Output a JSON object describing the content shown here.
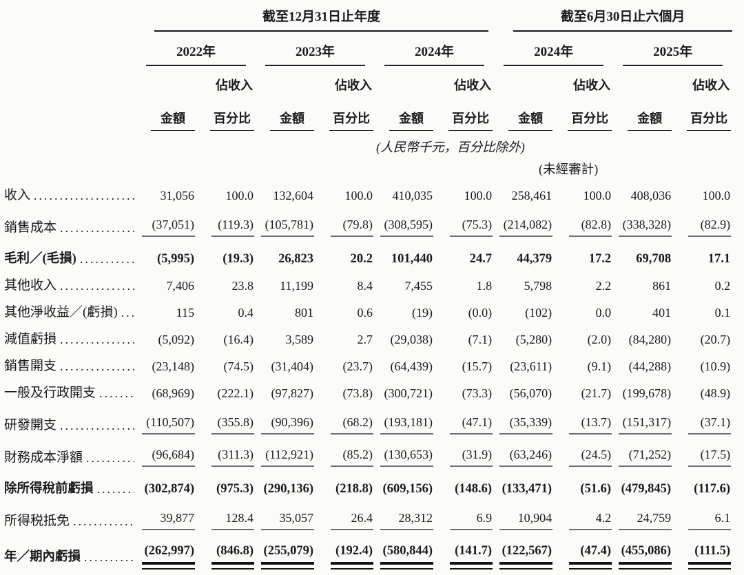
{
  "document": {
    "header": {
      "period_annual": "截至12月31日止年度",
      "period_interim": "截至6月30日止六個月",
      "years_annual": [
        "2022年",
        "2023年",
        "2024年"
      ],
      "years_interim": [
        "2024年",
        "2025年"
      ],
      "col_amount": "金額",
      "col_pct_line1": "佔收入",
      "col_pct_line2": "百分比",
      "note_units": "(人民幣千元，百分比除外)",
      "note_unaudited": "(未經審計)"
    },
    "rows": [
      {
        "label": "收入",
        "emphasis": false,
        "rule": "none",
        "values": [
          "31,056",
          "100.0",
          "132,604",
          "100.0",
          "410,035",
          "100.0",
          "258,461",
          "100.0",
          "408,036",
          "100.0"
        ]
      },
      {
        "label": "銷售成本",
        "emphasis": false,
        "rule": "single",
        "values": [
          "(37,051)",
          "(119.3)",
          "(105,781)",
          "(79.8)",
          "(308,595)",
          "(75.3)",
          "(214,082)",
          "(82.8)",
          "(338,328)",
          "(82.9)"
        ]
      },
      {
        "label": "毛利／(毛損)",
        "emphasis": true,
        "rule": "none",
        "values": [
          "(5,995)",
          "(19.3)",
          "26,823",
          "20.2",
          "101,440",
          "24.7",
          "44,379",
          "17.2",
          "69,708",
          "17.1"
        ]
      },
      {
        "label": "其他收入",
        "emphasis": false,
        "rule": "none",
        "values": [
          "7,406",
          "23.8",
          "11,199",
          "8.4",
          "7,455",
          "1.8",
          "5,798",
          "2.2",
          "861",
          "0.2"
        ]
      },
      {
        "label": "其他淨收益／(虧損)",
        "emphasis": false,
        "rule": "none",
        "values": [
          "115",
          "0.4",
          "801",
          "0.6",
          "(19)",
          "(0.0)",
          "(102)",
          "0.0",
          "401",
          "0.1"
        ]
      },
      {
        "label": "減值虧損",
        "emphasis": false,
        "rule": "none",
        "values": [
          "(5,092)",
          "(16.4)",
          "3,589",
          "2.7",
          "(29,038)",
          "(7.1)",
          "(5,280)",
          "(2.0)",
          "(84,280)",
          "(20.7)"
        ]
      },
      {
        "label": "銷售開支",
        "emphasis": false,
        "rule": "none",
        "values": [
          "(23,148)",
          "(74.5)",
          "(31,404)",
          "(23.7)",
          "(64,439)",
          "(15.7)",
          "(23,611)",
          "(9.1)",
          "(44,288)",
          "(10.9)"
        ]
      },
      {
        "label": "一般及行政開支",
        "emphasis": false,
        "rule": "none",
        "values": [
          "(68,969)",
          "(222.1)",
          "(97,827)",
          "(73.8)",
          "(300,721)",
          "(73.3)",
          "(56,070)",
          "(21.7)",
          "(199,678)",
          "(48.9)"
        ]
      },
      {
        "label": "研發開支",
        "emphasis": false,
        "rule": "single",
        "values": [
          "(110,507)",
          "(355.8)",
          "(90,396)",
          "(68.2)",
          "(193,181)",
          "(47.1)",
          "(35,339)",
          "(13.7)",
          "(151,317)",
          "(37.1)"
        ]
      },
      {
        "label": "財務成本淨額",
        "emphasis": false,
        "rule": "single",
        "values": [
          "(96,684)",
          "(311.3)",
          "(112,921)",
          "(85.2)",
          "(130,653)",
          "(31.9)",
          "(63,246)",
          "(24.5)",
          "(71,252)",
          "(17.5)"
        ]
      },
      {
        "label": "除所得稅前虧損",
        "emphasis": true,
        "rule": "none",
        "values": [
          "(302,874)",
          "(975.3)",
          "(290,136)",
          "(218.8)",
          "(609,156)",
          "(148.6)",
          "(133,471)",
          "(51.6)",
          "(479,845)",
          "(117.6)"
        ]
      },
      {
        "label": "所得税抵免",
        "emphasis": false,
        "rule": "single",
        "values": [
          "39,877",
          "128.4",
          "35,057",
          "26.4",
          "28,312",
          "6.9",
          "10,904",
          "4.2",
          "24,759",
          "6.1"
        ]
      },
      {
        "label": "年／期內虧損",
        "emphasis": true,
        "rule": "double",
        "values": [
          "(262,997)",
          "(846.8)",
          "(255,079)",
          "(192.4)",
          "(580,844)",
          "(141.7)",
          "(122,567)",
          "(47.4)",
          "(455,086)",
          "(111.5)"
        ]
      }
    ]
  }
}
